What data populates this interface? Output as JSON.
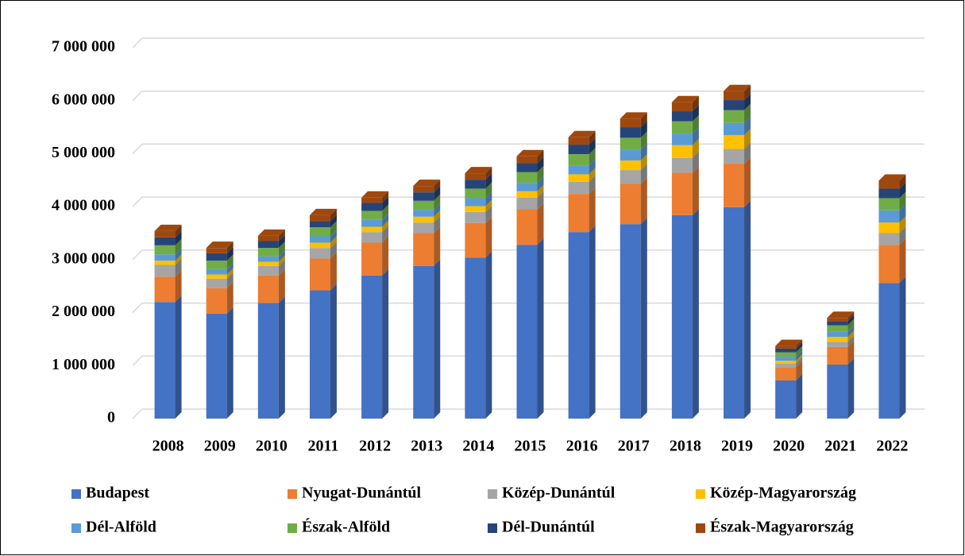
{
  "chart_data": {
    "type": "stacked_bar_3d",
    "categories": [
      "2008",
      "2009",
      "2010",
      "2011",
      "2012",
      "2013",
      "2014",
      "2015",
      "2016",
      "2017",
      "2018",
      "2019",
      "2020",
      "2021",
      "2022"
    ],
    "series": [
      {
        "name": "Budapest",
        "color": "#4472c4",
        "values": [
          2200000,
          1980000,
          2180000,
          2420000,
          2700000,
          2880000,
          3040000,
          3280000,
          3520000,
          3670000,
          3840000,
          3990000,
          720000,
          1020000,
          2560000
        ]
      },
      {
        "name": "Nyugat-Dunántúl",
        "color": "#ed7d31",
        "values": [
          480000,
          480000,
          520000,
          600000,
          620000,
          620000,
          650000,
          670000,
          720000,
          760000,
          800000,
          820000,
          250000,
          330000,
          720000
        ]
      },
      {
        "name": "Közép-Dunántúl",
        "color": "#a5a5a5",
        "values": [
          220000,
          180000,
          180000,
          200000,
          200000,
          200000,
          210000,
          220000,
          230000,
          260000,
          280000,
          280000,
          70000,
          100000,
          220000
        ]
      },
      {
        "name": "Közép-Magyarország",
        "color": "#ffc000",
        "values": [
          80000,
          80000,
          80000,
          100000,
          100000,
          110000,
          110000,
          120000,
          140000,
          180000,
          240000,
          260000,
          50000,
          90000,
          200000
        ]
      },
      {
        "name": "Dél-Alföld",
        "color": "#5b9bd5",
        "values": [
          120000,
          100000,
          100000,
          120000,
          130000,
          130000,
          150000,
          160000,
          170000,
          210000,
          220000,
          230000,
          80000,
          100000,
          230000
        ]
      },
      {
        "name": "Észak-Alföld",
        "color": "#70ad47",
        "values": [
          170000,
          160000,
          160000,
          170000,
          170000,
          170000,
          180000,
          200000,
          210000,
          220000,
          230000,
          240000,
          80000,
          120000,
          230000
        ]
      },
      {
        "name": "Dél-Dunántúl",
        "color": "#264478",
        "values": [
          150000,
          140000,
          130000,
          120000,
          150000,
          160000,
          170000,
          170000,
          180000,
          200000,
          190000,
          190000,
          70000,
          80000,
          180000
        ]
      },
      {
        "name": "Észak-Magyarország",
        "color": "#9e480e",
        "values": [
          120000,
          100000,
          100000,
          110000,
          100000,
          120000,
          120000,
          130000,
          140000,
          160000,
          170000,
          170000,
          50000,
          60000,
          150000
        ]
      }
    ],
    "ylim": [
      0,
      7000000
    ],
    "yticks": [
      0,
      {
        "value": 1000000,
        "label": "1 000 000"
      },
      {
        "value": 2000000,
        "label": "2 000 000"
      },
      {
        "value": 3000000,
        "label": "3 000 000"
      },
      {
        "value": 4000000,
        "label": "4 000 000"
      },
      {
        "value": 5000000,
        "label": "5 000 000"
      },
      {
        "value": 6000000,
        "label": "6 000 000"
      },
      {
        "value": 7000000,
        "label": "7 000 000"
      }
    ],
    "grid": true
  }
}
